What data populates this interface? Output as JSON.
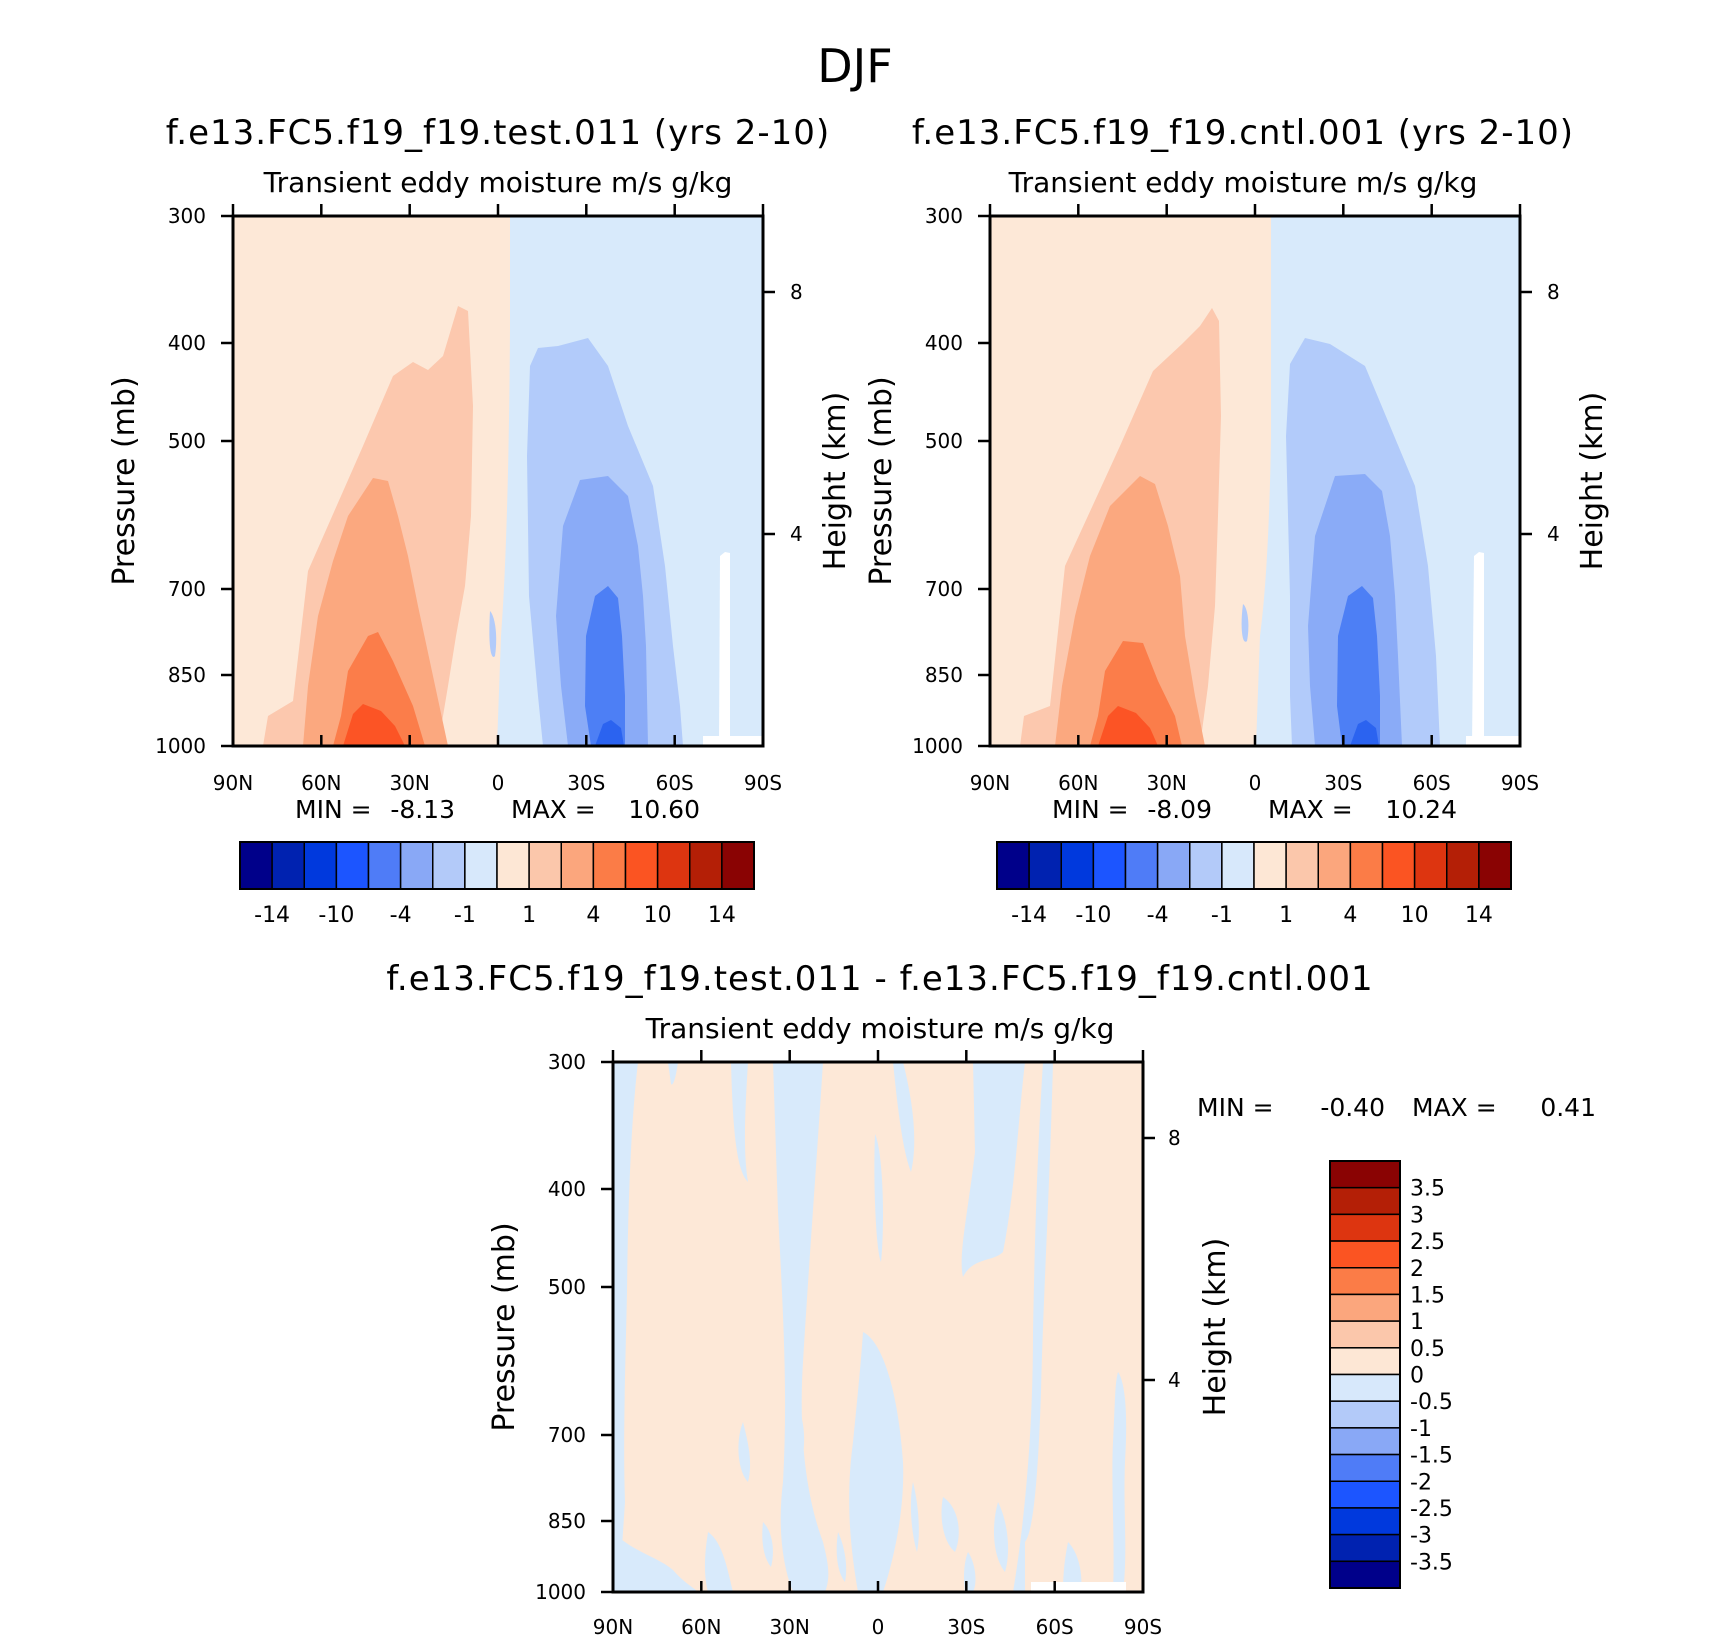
{
  "figure_title": "DJF",
  "colors": {
    "neg_fill_1": "#d8eafb",
    "neg_fill_2": "#b2cbfa",
    "neg_fill_3": "#8aabf7",
    "neg_fill_4": "#4d7ff5",
    "neg_fill_5": "#2b63f0",
    "pos_fill_1": "#fde8d7",
    "pos_fill_2": "#fcc8ae",
    "pos_fill_3": "#fba87f",
    "pos_fill_4": "#fb7d4a",
    "pos_fill_5": "#fc5425"
  },
  "chart_data": [
    {
      "type": "heatmap",
      "title": "f.e13.FC5.f19_f19.test.011 (yrs 2-10)",
      "subtitle": "Transient eddy moisture m/s g/kg",
      "ylabel": "Pressure (mb)",
      "ylabel_right": "Height (km)",
      "x_ticks": [
        "90N",
        "60N",
        "30N",
        "0",
        "30S",
        "60S",
        "90S"
      ],
      "y_ticks": [
        "300",
        "400",
        "500",
        "700",
        "850",
        "1000"
      ],
      "y_right_ticks": [
        "8",
        "4"
      ],
      "ylim": [
        1000,
        300
      ],
      "y_scale": "log",
      "min_label": "MIN =",
      "min_value": "-8.13",
      "max_label": "MAX =",
      "max_value": "10.60",
      "colorbar": {
        "orientation": "horizontal",
        "colors": [
          "#00008a",
          "#0022b0",
          "#0039dd",
          "#1c55ff",
          "#4f7cf7",
          "#89a8f6",
          "#b3caf9",
          "#d7e8fb",
          "#fde7d5",
          "#fbc7ab",
          "#fba67d",
          "#fb7c47",
          "#fb5422",
          "#dd3510",
          "#b41f06",
          "#8a0303"
        ],
        "tick_labels": [
          "-14",
          "-10",
          "-4",
          "-1",
          "1",
          "4",
          "10",
          "14"
        ]
      }
    },
    {
      "type": "heatmap",
      "title": "f.e13.FC5.f19_f19.cntl.001 (yrs 2-10)",
      "subtitle": "Transient eddy moisture m/s g/kg",
      "ylabel": "Pressure (mb)",
      "ylabel_right": "Height (km)",
      "x_ticks": [
        "90N",
        "60N",
        "30N",
        "0",
        "30S",
        "60S",
        "90S"
      ],
      "y_ticks": [
        "300",
        "400",
        "500",
        "700",
        "850",
        "1000"
      ],
      "y_right_ticks": [
        "8",
        "4"
      ],
      "ylim": [
        1000,
        300
      ],
      "y_scale": "log",
      "min_label": "MIN =",
      "min_value": "-8.09",
      "max_label": "MAX =",
      "max_value": "10.24",
      "colorbar": {
        "orientation": "horizontal",
        "colors": [
          "#00008a",
          "#0022b0",
          "#0039dd",
          "#1c55ff",
          "#4f7cf7",
          "#89a8f6",
          "#b3caf9",
          "#d7e8fb",
          "#fde7d5",
          "#fbc7ab",
          "#fba67d",
          "#fb7c47",
          "#fb5422",
          "#dd3510",
          "#b41f06",
          "#8a0303"
        ],
        "tick_labels": [
          "-14",
          "-10",
          "-4",
          "-1",
          "1",
          "4",
          "10",
          "14"
        ]
      }
    },
    {
      "type": "heatmap",
      "title": "f.e13.FC5.f19_f19.test.011 - f.e13.FC5.f19_f19.cntl.001",
      "subtitle": "Transient eddy moisture m/s g/kg",
      "ylabel": "Pressure (mb)",
      "ylabel_right": "Height (km)",
      "x_ticks": [
        "90N",
        "60N",
        "30N",
        "0",
        "30S",
        "60S",
        "90S"
      ],
      "y_ticks": [
        "300",
        "400",
        "500",
        "700",
        "850",
        "1000"
      ],
      "y_right_ticks": [
        "8",
        "4"
      ],
      "ylim": [
        1000,
        300
      ],
      "y_scale": "log",
      "min_label": "MIN =",
      "min_value": "-0.40",
      "max_label": "MAX =",
      "max_value": "0.41",
      "colorbar": {
        "orientation": "vertical",
        "colors_top_to_bottom": [
          "#8a0303",
          "#b41f06",
          "#dd3510",
          "#fb5422",
          "#fb7c47",
          "#fba67d",
          "#fbc7ab",
          "#fde7d5",
          "#d7e8fb",
          "#b3caf9",
          "#89a8f6",
          "#4f7cf7",
          "#1c55ff",
          "#0039dd",
          "#0022b0",
          "#00008a"
        ],
        "tick_labels": [
          "3.5",
          "3",
          "2.5",
          "2",
          "1.5",
          "1",
          "0.5",
          "0",
          "-0.5",
          "-1",
          "-1.5",
          "-2",
          "-2.5",
          "-3",
          "-3.5"
        ]
      }
    }
  ]
}
